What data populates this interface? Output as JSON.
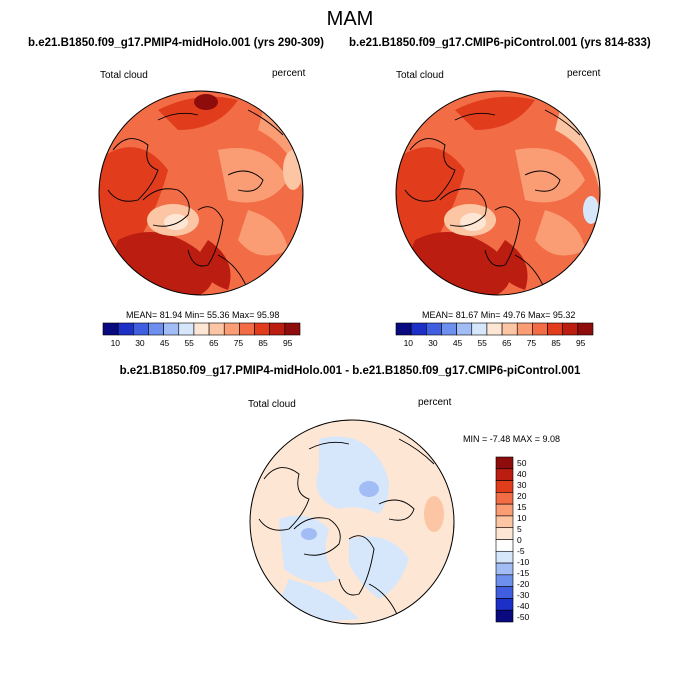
{
  "season": "MAM",
  "panel_left": {
    "case_title": "b.e21.B1850.f09_g17.PMIP4-midHolo.001 (yrs 290-309)",
    "var_label": "Total cloud",
    "units": "percent",
    "stats": "MEAN=  81.94  Min=  55.36  Max=  95.98",
    "colorbar": {
      "colors": [
        "#0a0a80",
        "#1c2fc6",
        "#3f5fe0",
        "#6d8fee",
        "#a2bdf6",
        "#d6e6fb",
        "#fde6d4",
        "#fcc6a4",
        "#fa9c74",
        "#f26c45",
        "#e13d1c",
        "#bb1d10",
        "#8e0c0c"
      ],
      "labels": [
        "10",
        "30",
        "45",
        "55",
        "65",
        "75",
        "85",
        "95"
      ]
    }
  },
  "panel_right": {
    "case_title": "b.e21.B1850.f09_g17.CMIP6-piControl.001 (yrs 814-833)",
    "var_label": "Total cloud",
    "units": "percent",
    "stats": "MEAN=  81.67  Min=  49.76  Max=  95.32",
    "colorbar": {
      "colors": [
        "#0a0a80",
        "#1c2fc6",
        "#3f5fe0",
        "#6d8fee",
        "#a2bdf6",
        "#d6e6fb",
        "#fde6d4",
        "#fcc6a4",
        "#fa9c74",
        "#f26c45",
        "#e13d1c",
        "#bb1d10",
        "#8e0c0c"
      ],
      "labels": [
        "10",
        "30",
        "45",
        "55",
        "65",
        "75",
        "85",
        "95"
      ]
    }
  },
  "panel_diff": {
    "case_title": "b.e21.B1850.f09_g17.PMIP4-midHolo.001 - b.e21.B1850.f09_g17.CMIP6-piControl.001",
    "var_label": "Total cloud",
    "units": "percent",
    "stats": "MIN =  -7.48 MAX =   9.08",
    "colorbar": {
      "colors": [
        "#8e0c0c",
        "#bb1d10",
        "#e13d1c",
        "#f26c45",
        "#fa9c74",
        "#fcc6a4",
        "#fde6d4",
        "#ffffff",
        "#d6e6fb",
        "#a2bdf6",
        "#6d8fee",
        "#3f5fe0",
        "#1c2fc6",
        "#0a0a80"
      ],
      "labels": [
        "50",
        "40",
        "30",
        "20",
        "15",
        "10",
        "5",
        "0",
        "-5",
        "-10",
        "-15",
        "-20",
        "-30",
        "-40",
        "-50"
      ]
    }
  }
}
